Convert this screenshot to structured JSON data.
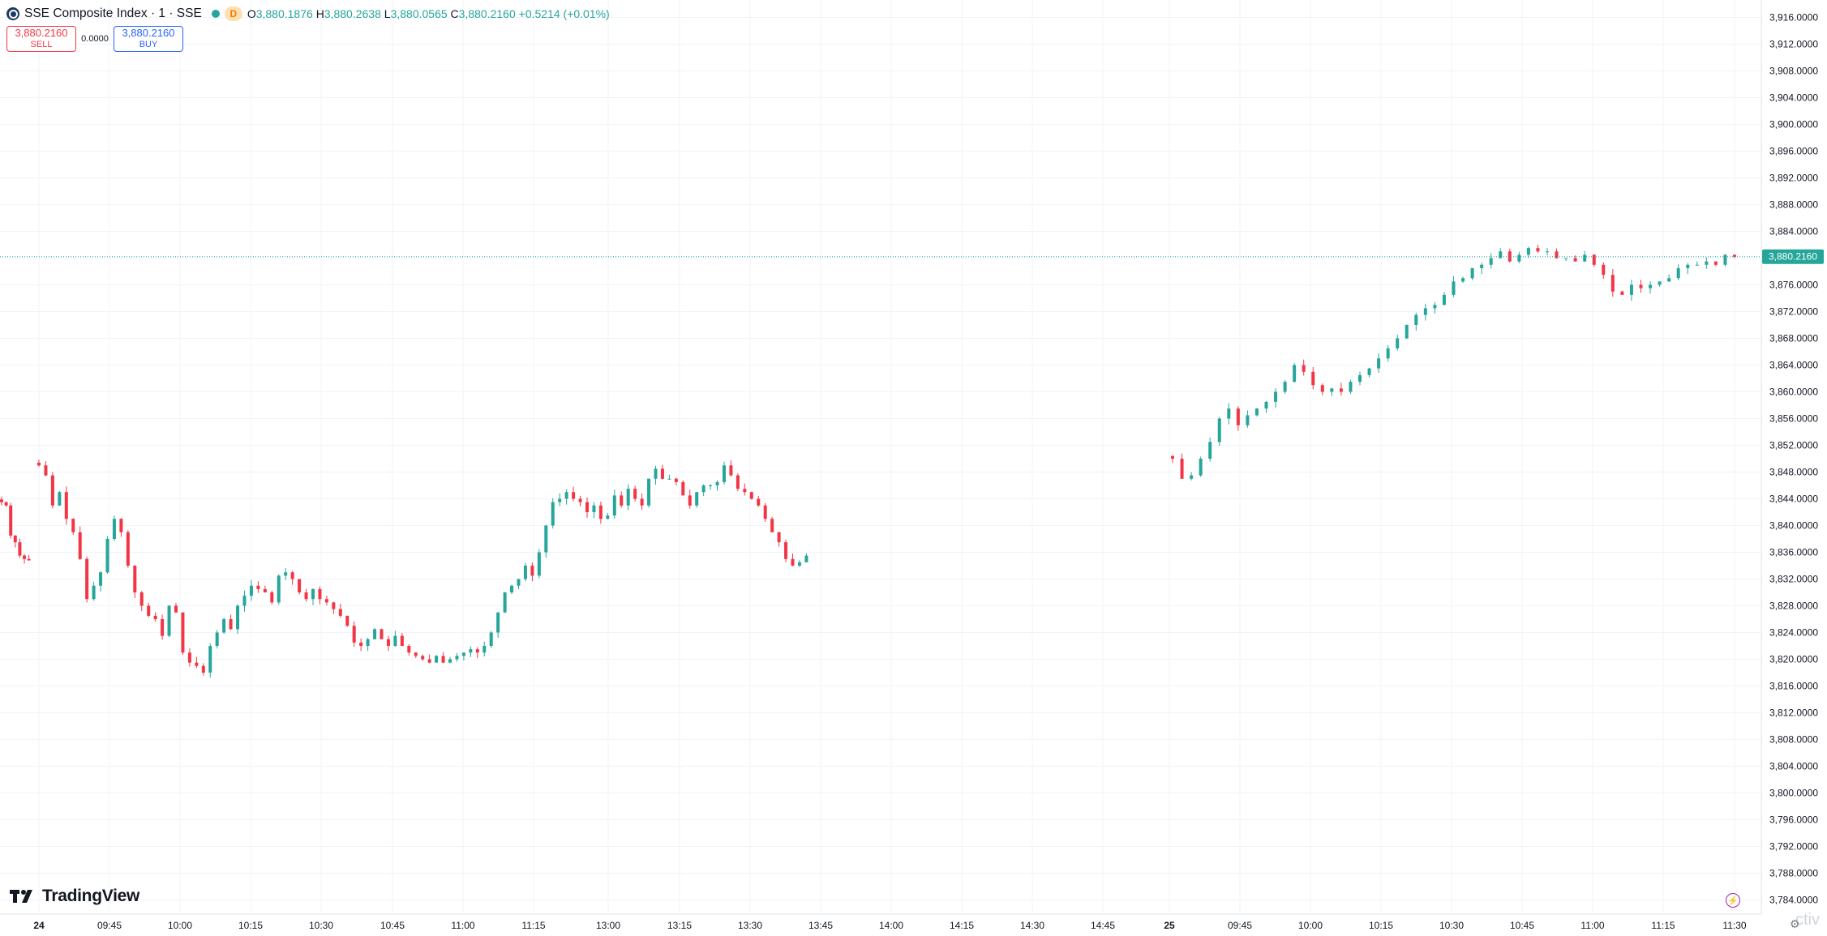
{
  "header": {
    "symbol_title": "SSE Composite Index · 1 · SSE",
    "badge": "D",
    "open_label": "O",
    "open_value": "3,880.1876",
    "high_label": "H",
    "high_value": "3,880.2638",
    "low_label": "L",
    "low_value": "3,880.0565",
    "close_label": "C",
    "close_value": "3,880.2160",
    "change": "+0.5214 (+0.01%)"
  },
  "trade": {
    "sell_price": "3,880.2160",
    "sell_label": "SELL",
    "spread": "0.0000",
    "buy_price": "3,880.2160",
    "buy_label": "BUY"
  },
  "branding": {
    "logo_text": "TradingView",
    "watermark": "ctiv"
  },
  "icons": {
    "symbol_logo": "sse-logo-icon",
    "market_status": "market-open-dot-icon",
    "tradingview": "tradingview-logo-icon",
    "bolt": "lightning-icon",
    "settings": "gear-icon"
  },
  "colors": {
    "up": "#26a69a",
    "down": "#f23645",
    "grid": "#f0f3fa",
    "axis_text": "#131722",
    "last_price_bg": "#26a69a"
  },
  "chart_data": {
    "type": "candlestick",
    "symbol": "SSE Composite Index",
    "interval": "1",
    "ylim": [
      3782,
      3918
    ],
    "y_ticks": [
      "3,916.0000",
      "3,912.0000",
      "3,908.0000",
      "3,904.0000",
      "3,900.0000",
      "3,896.0000",
      "3,892.0000",
      "3,888.0000",
      "3,884.0000",
      "3,880.0000",
      "3,876.0000",
      "3,872.0000",
      "3,868.0000",
      "3,864.0000",
      "3,860.0000",
      "3,856.0000",
      "3,852.0000",
      "3,848.0000",
      "3,844.0000",
      "3,840.0000",
      "3,836.0000",
      "3,832.0000",
      "3,828.0000",
      "3,824.0000",
      "3,820.0000",
      "3,816.0000",
      "3,812.0000",
      "3,808.0000",
      "3,804.0000",
      "3,800.0000",
      "3,796.0000",
      "3,792.0000",
      "3,788.0000",
      "3,784.0000"
    ],
    "x_ticks": [
      "24",
      "09:45",
      "10:00",
      "10:15",
      "10:30",
      "10:45",
      "11:00",
      "11:15",
      "13:00",
      "13:15",
      "13:30",
      "13:45",
      "14:00",
      "14:15",
      "14:30",
      "14:45",
      "25",
      "09:45",
      "10:00",
      "10:15",
      "10:30",
      "10:45",
      "11:00",
      "11:15",
      "11:30"
    ],
    "last_price": "3,880.2160",
    "last_price_value": 3880.216,
    "grid": true,
    "session_path": [
      [
        3843.5,
        3843.0,
        3838.5,
        3837.5,
        3835.5,
        3835.0,
        3834.8
      ],
      [
        3849.0,
        3847.5,
        3843.0,
        3845.0,
        3841.0,
        3839.0,
        3835.0,
        3829.0,
        3831.0,
        3833.0,
        3838.0,
        3841.0,
        3839.0,
        3834.0,
        3830.0,
        3828.0,
        3826.5,
        3826.0,
        3823.5,
        3828.0,
        3827.0,
        3821.0,
        3819.5,
        3819.0,
        3818.0,
        3822.0,
        3824.0,
        3826.0,
        3824.5,
        3828.0,
        3829.5,
        3831.0,
        3830.5,
        3830.0,
        3828.5,
        3832.5,
        3833.0,
        3832.0,
        3830.0,
        3829.0,
        3830.5,
        3829.0,
        3828.5,
        3827.5,
        3826.5,
        3825.0,
        3822.5,
        3822.0,
        3823.0,
        3824.5,
        3823.0,
        3822.0,
        3823.5,
        3822.0,
        3821.0,
        3820.5,
        3820.0,
        3819.5,
        3820.5,
        3819.5,
        3820.0,
        3820.5,
        3821.0,
        3821.5,
        3821.0,
        3822.0,
        3824.0,
        3827.0,
        3830.0,
        3831.0,
        3832.0,
        3834.0,
        3832.5,
        3836.0,
        3840.0,
        3843.5,
        3844.0,
        3845.0,
        3844.0,
        3843.5,
        3842.0,
        3843.0,
        3841.0,
        3841.5,
        3844.5,
        3843.0,
        3845.5,
        3844.0,
        3843.0,
        3847.0,
        3848.5,
        3847.0,
        3847.0,
        3846.5,
        3844.5,
        3843.0,
        3845.0,
        3846.0,
        3846.0,
        3846.5,
        3849.0,
        3847.5,
        3845.5,
        3845.0,
        3844.0,
        3843.0,
        3841.0,
        3839.0,
        3837.5,
        3835.0,
        3834.0,
        3834.5,
        3835.5
      ]
    ],
    "session2_path": [
      3850.0,
      3847.0,
      3847.5,
      3850.0,
      3852.5,
      3856.0,
      3857.5,
      3855.0,
      3856.5,
      3857.5,
      3858.5,
      3860.0,
      3861.5,
      3864.0,
      3863.0,
      3861.0,
      3860.0,
      3860.5,
      3860.0,
      3861.5,
      3862.5,
      3863.5,
      3865.0,
      3866.5,
      3868.0,
      3870.0,
      3871.5,
      3872.5,
      3873.0,
      3874.5,
      3876.5,
      3877.0,
      3878.5,
      3879.0,
      3880.0,
      3881.0,
      3879.5,
      3880.5,
      3881.5,
      3881.0,
      3881.0,
      3880.0,
      3880.0,
      3879.5,
      3880.5,
      3879.0,
      3877.5,
      3875.0,
      3874.5,
      3876.0,
      3875.5,
      3876.0,
      3876.5,
      3877.0,
      3878.5,
      3879.0,
      3879.0,
      3879.5,
      3879.0,
      3880.5,
      3880.2
    ]
  }
}
